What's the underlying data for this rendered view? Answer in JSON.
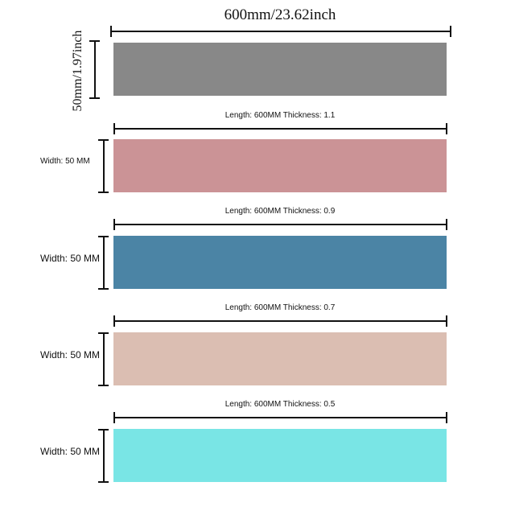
{
  "top_dimension": "600mm/23.62inch",
  "side_dimension": "50mm/1.97inch",
  "strips": [
    {
      "name": "gray",
      "color": "#888888",
      "length_label": "",
      "width_label": ""
    },
    {
      "name": "pink",
      "color": "#CB9396",
      "length_label": "Length: 600MM Thickness: 1.1",
      "width_label": "Width: 50 MM"
    },
    {
      "name": "blue",
      "color": "#4B84A5",
      "length_label": "Length: 600MM Thickness: 0.9",
      "width_label": "Width: 50 MM"
    },
    {
      "name": "beige",
      "color": "#DBBEB2",
      "length_label": "Length: 600MM Thickness: 0.7",
      "width_label": "Width: 50 MM"
    },
    {
      "name": "cyan",
      "color": "#79E5E5",
      "length_label": "Length: 600MM Thickness: 0.5",
      "width_label": "Width: 50 MM"
    }
  ]
}
